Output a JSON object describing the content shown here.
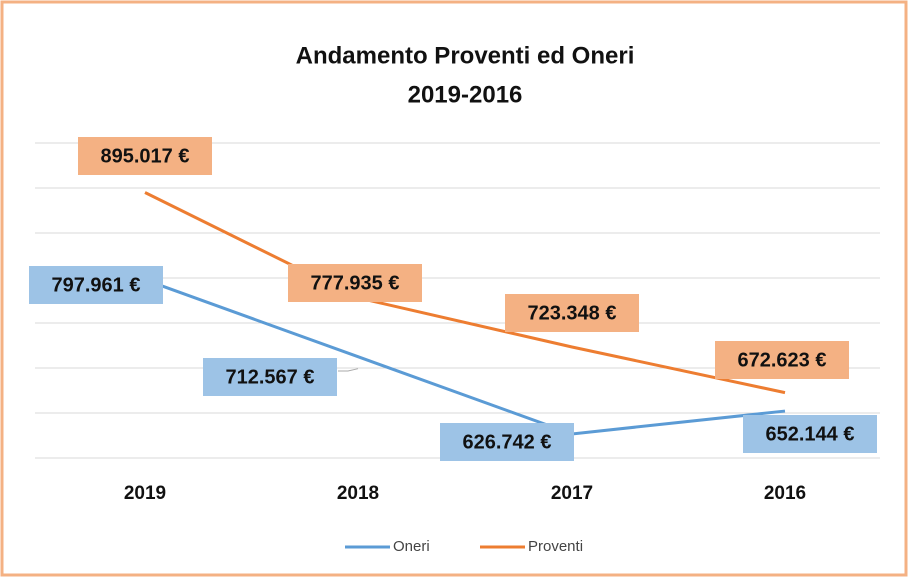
{
  "chart_data": {
    "type": "line",
    "title": "Andamento Proventi ed Oneri",
    "subtitle": "2019-2016",
    "categories": [
      "2019",
      "2018",
      "2017",
      "2016"
    ],
    "series": [
      {
        "name": "Oneri",
        "color": "#5b9bd5",
        "values": [
          797961,
          712567,
          626742,
          652144
        ],
        "value_labels": [
          "797.961 €",
          "712.567 €",
          "626.742 €",
          "652.144 €"
        ]
      },
      {
        "name": "Proventi",
        "color": "#ed7d31",
        "values": [
          895017,
          777935,
          723348,
          672623
        ],
        "value_labels": [
          "895.017 €",
          "777.935 €",
          "723.348 €",
          "672.623 €"
        ]
      }
    ],
    "ylim": [
      600000,
      950000
    ],
    "yticks": [
      600000,
      650000,
      700000,
      750000,
      800000,
      850000,
      900000,
      950000
    ],
    "grid": true,
    "legend": "bottom"
  }
}
